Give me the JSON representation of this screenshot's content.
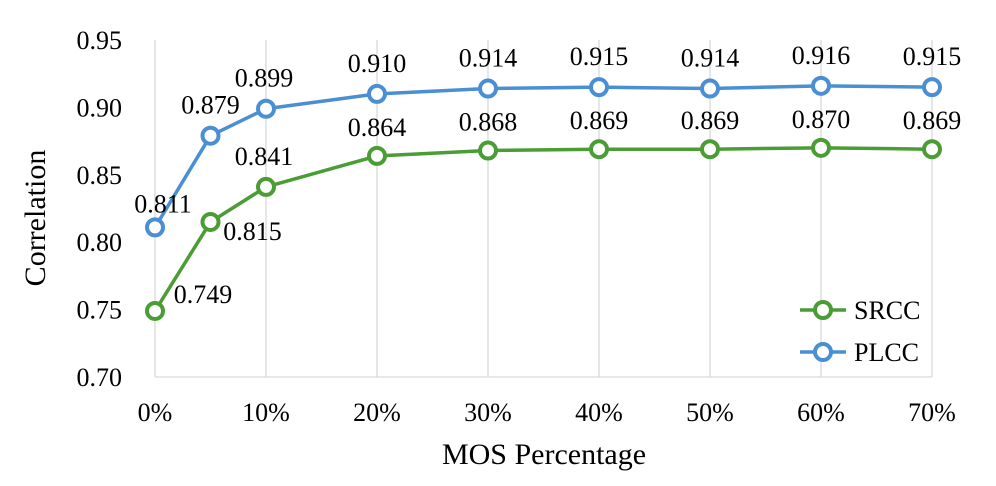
{
  "chart_data": {
    "type": "line",
    "xlabel": "MOS Percentage",
    "ylabel": "Correlation",
    "x": [
      0,
      5,
      10,
      20,
      30,
      40,
      50,
      60,
      70
    ],
    "x_tick_labels": [
      "0%",
      "10%",
      "20%",
      "30%",
      "40%",
      "50%",
      "60%",
      "70%"
    ],
    "x_tick_values": [
      0,
      10,
      20,
      30,
      40,
      50,
      60,
      70
    ],
    "xlim": [
      0,
      70
    ],
    "ylim": [
      0.7,
      0.95
    ],
    "y_ticks": [
      "0.70",
      "0.75",
      "0.80",
      "0.85",
      "0.90",
      "0.95"
    ],
    "grid": "vertical",
    "legend_position": "bottom-right",
    "series": [
      {
        "name": "SRCC",
        "color": "#4a9d34",
        "values": [
          0.749,
          0.815,
          0.841,
          0.864,
          0.868,
          0.869,
          0.869,
          0.87,
          0.869
        ],
        "labels": [
          "0.749",
          "0.815",
          "0.841",
          "0.864",
          "0.868",
          "0.869",
          "0.869",
          "0.870",
          "0.869"
        ]
      },
      {
        "name": "PLCC",
        "color": "#4a8fd4",
        "values": [
          0.811,
          0.879,
          0.899,
          0.91,
          0.914,
          0.915,
          0.914,
          0.916,
          0.915
        ],
        "labels": [
          "0.811",
          "0.879",
          "0.899",
          "0.910",
          "0.914",
          "0.915",
          "0.914",
          "0.916",
          "0.915"
        ]
      }
    ]
  }
}
